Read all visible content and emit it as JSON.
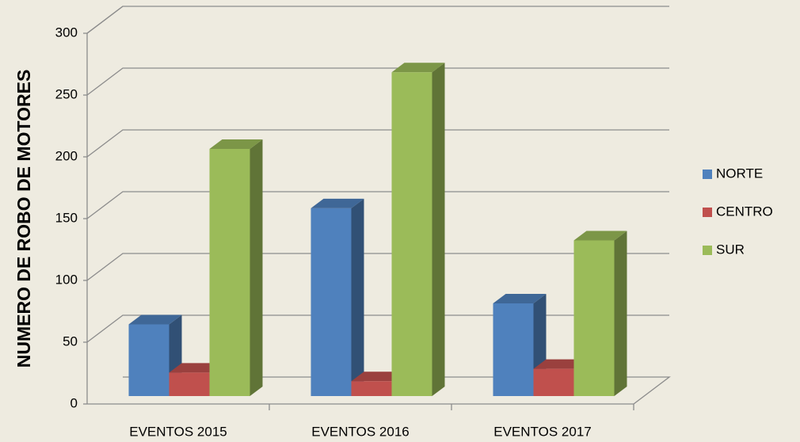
{
  "chart_data": {
    "type": "bar3d",
    "y_label": "NUMERO DE ROBO DE MOTORES",
    "categories": [
      "EVENTOS 2015",
      "EVENTOS 2016",
      "EVENTOS 2017"
    ],
    "series": [
      {
        "name": "NORTE",
        "color": "#4f81bd",
        "values": [
          58,
          152,
          75
        ]
      },
      {
        "name": "CENTRO",
        "color": "#c0504d",
        "values": [
          19,
          12,
          22
        ]
      },
      {
        "name": "SUR",
        "color": "#9bbb59",
        "values": [
          200,
          262,
          126
        ]
      }
    ],
    "ylim": [
      0,
      300
    ],
    "yticks": [
      0,
      50,
      100,
      150,
      200,
      250,
      300
    ],
    "grid": true,
    "legend": "right"
  }
}
